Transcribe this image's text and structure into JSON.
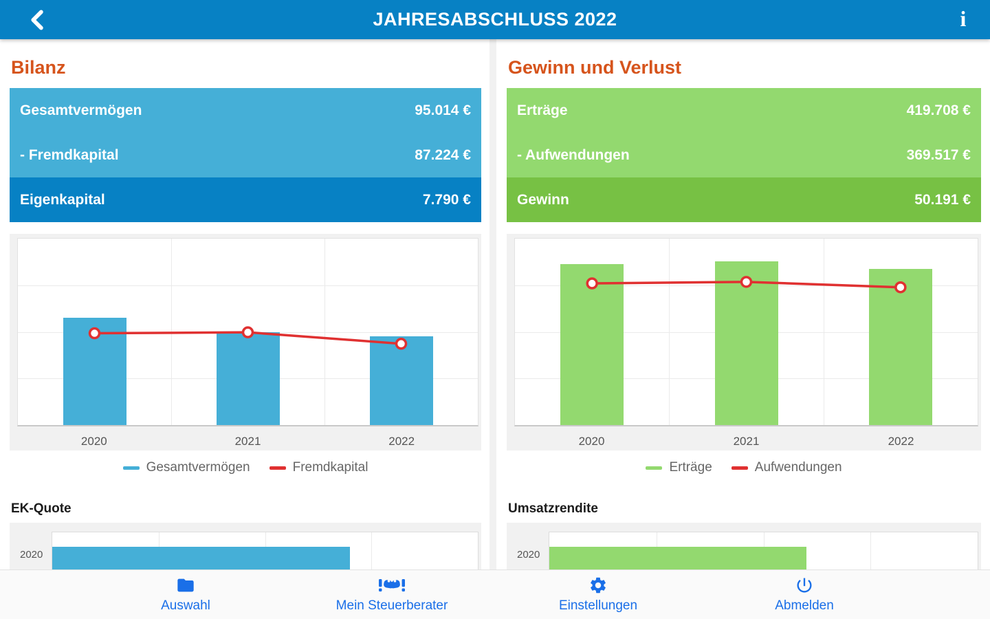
{
  "topbar": {
    "title": "JAHRESABSCHLUSS 2022",
    "back_icon": "chevron-left",
    "info_glyph": "i"
  },
  "panels": [
    {
      "heading": "Bilanz",
      "rows": [
        {
          "label": "Gesamtvermögen",
          "value": "95.014 €",
          "bg": "#45AFD7"
        },
        {
          "label": "- Fremdkapital",
          "value": "87.224 €",
          "bg": "#45AFD7"
        },
        {
          "label": "Eigenkapital",
          "value": "7.790 €",
          "bg": "#0781C4"
        }
      ],
      "legend": [
        {
          "label": "Gesamtvermögen",
          "color": "#45AFD7"
        },
        {
          "label": "Fremdkapital",
          "color": "#E03131"
        }
      ],
      "mini_title": "EK-Quote"
    },
    {
      "heading": "Gewinn und Verlust",
      "rows": [
        {
          "label": "Erträge",
          "value": "419.708 €",
          "bg": "#93D96F"
        },
        {
          "label": "- Aufwendungen",
          "value": "369.517 €",
          "bg": "#93D96F"
        },
        {
          "label": "Gewinn",
          "value": "50.191 €",
          "bg": "#77C144"
        }
      ],
      "legend": [
        {
          "label": "Erträge",
          "color": "#93D96F"
        },
        {
          "label": "Aufwendungen",
          "color": "#E03131"
        }
      ],
      "mini_title": "Umsatzrendite"
    }
  ],
  "chart_data": [
    {
      "type": "bar",
      "categories": [
        "2020",
        "2021",
        "2022"
      ],
      "series": [
        {
          "name": "Gesamtvermögen",
          "type": "bar",
          "color": "#45AFD7",
          "values": [
            115000,
            100000,
            95014
          ]
        },
        {
          "name": "Fremdkapital",
          "type": "line",
          "color": "#E03131",
          "values": [
            98500,
            99500,
            87224
          ]
        }
      ],
      "ylim": [
        0,
        200000
      ],
      "grid": true,
      "legend_position": "bottom"
    },
    {
      "type": "bar",
      "categories": [
        "2020",
        "2021",
        "2022"
      ],
      "series": [
        {
          "name": "Erträge",
          "type": "bar",
          "color": "#93D96F",
          "values": [
            432000,
            440000,
            419708
          ]
        },
        {
          "name": "Aufwendungen",
          "type": "line",
          "color": "#E03131",
          "values": [
            380000,
            384000,
            369517
          ]
        }
      ],
      "ylim": [
        0,
        500000
      ],
      "grid": true,
      "legend_position": "bottom"
    },
    {
      "type": "bar",
      "orientation": "horizontal",
      "title": "EK-Quote",
      "categories": [
        "2020"
      ],
      "values_fraction_of_axis": [
        0.7
      ],
      "color": "#45AFD7"
    },
    {
      "type": "bar",
      "orientation": "horizontal",
      "title": "Umsatzrendite",
      "categories": [
        "2020"
      ],
      "values_fraction_of_axis": [
        0.6
      ],
      "color": "#93D96F"
    }
  ],
  "nav": {
    "items": [
      {
        "label": "Auswahl",
        "icon": "folder"
      },
      {
        "label": "Mein Steuerberater",
        "icon": "handshake"
      },
      {
        "label": "Einstellungen",
        "icon": "gear"
      },
      {
        "label": "Abmelden",
        "icon": "power"
      }
    ]
  },
  "colors": {
    "topbar": "#0781C4",
    "heading_accent": "#D6541C",
    "nav_blue": "#1A6FE8",
    "line_red": "#E03131",
    "bar_blue": "#45AFD7",
    "bar_green": "#93D96F",
    "row_blue_dark": "#0781C4",
    "row_green_dark": "#77C144"
  }
}
